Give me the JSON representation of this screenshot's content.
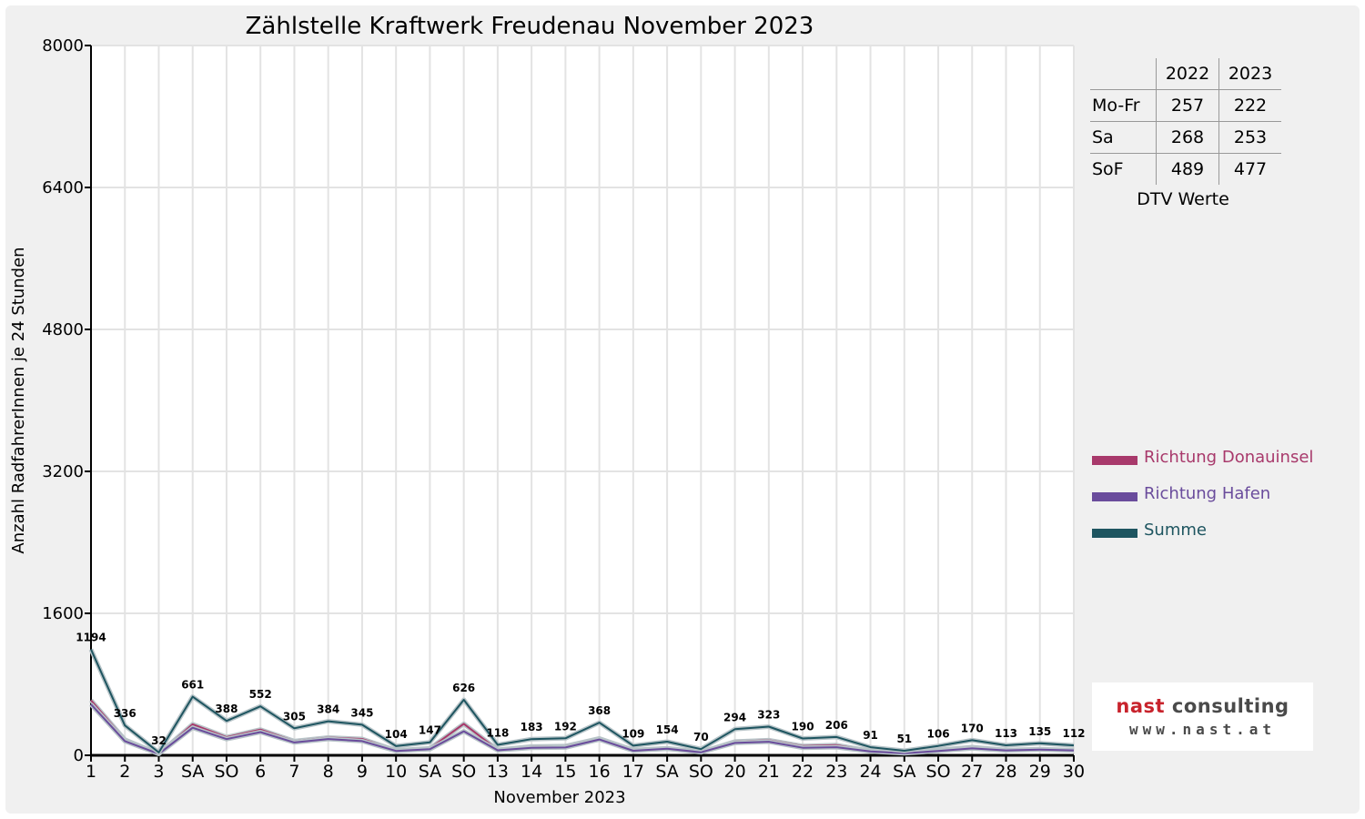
{
  "chart_data": {
    "type": "line",
    "title": "Zählstelle Kraftwerk Freudenau November 2023",
    "ylabel": "Anzahl RadfahrerInnen je 24 Stunden",
    "xlabel": "November 2023",
    "ylim": [
      0,
      8000
    ],
    "yticks": [
      "0",
      "1600",
      "3200",
      "4800",
      "6400",
      "8000"
    ],
    "grid": true,
    "legend_position": "right",
    "categories": [
      "1",
      "2",
      "3",
      "SA",
      "SO",
      "6",
      "7",
      "8",
      "9",
      "10",
      "SA",
      "SO",
      "13",
      "14",
      "15",
      "16",
      "17",
      "SA",
      "SO",
      "20",
      "21",
      "22",
      "23",
      "24",
      "SA",
      "SO",
      "27",
      "28",
      "29",
      "30"
    ],
    "highlight_categories": [
      0,
      4,
      11,
      18,
      25
    ],
    "highlight_color": "#e00000",
    "series": [
      {
        "name": "Richtung Donauinsel",
        "color": "#a8396b",
        "values": [
          620,
          176,
          16,
          350,
          205,
          290,
          160,
          200,
          185,
          55,
          78,
          355,
          62,
          98,
          104,
          190,
          58,
          80,
          36,
          155,
          170,
          105,
          115,
          48,
          27,
          58,
          92,
          58,
          70,
          57
        ]
      },
      {
        "name": "Richtung Hafen",
        "color": "#6a4c9c",
        "values": [
          574,
          160,
          16,
          311,
          183,
          262,
          145,
          184,
          160,
          49,
          69,
          271,
          56,
          85,
          88,
          178,
          51,
          74,
          34,
          139,
          153,
          85,
          91,
          43,
          24,
          48,
          78,
          55,
          65,
          55
        ]
      },
      {
        "name": "Summe",
        "color": "#1e5560",
        "values": [
          1194,
          336,
          32,
          661,
          388,
          552,
          305,
          384,
          345,
          104,
          147,
          626,
          118,
          183,
          192,
          368,
          109,
          154,
          70,
          294,
          323,
          190,
          206,
          91,
          51,
          106,
          170,
          113,
          135,
          112
        ]
      }
    ],
    "data_labels": [
      "1194",
      "336",
      "32",
      "661",
      "388",
      "552",
      "305",
      "384",
      "345",
      "104",
      "147",
      "626",
      "118",
      "183",
      "192",
      "368",
      "109",
      "154",
      "70",
      "294",
      "323",
      "190",
      "206",
      "91",
      "51",
      "106",
      "170",
      "113",
      "135",
      "112"
    ]
  },
  "dtv_table": {
    "headers": [
      "",
      "2022",
      "2023"
    ],
    "rows": [
      {
        "label": "Mo-Fr",
        "v2022": "257",
        "v2023": "222"
      },
      {
        "label": "Sa",
        "v2022": "268",
        "v2023": "253"
      },
      {
        "label": "SoF",
        "v2022": "489",
        "v2023": "477"
      }
    ],
    "caption": "DTV Werte"
  },
  "legend": [
    {
      "label": "Richtung Donauinsel",
      "color": "#a8396b"
    },
    {
      "label": "Richtung Hafen",
      "color": "#6a4c9c"
    },
    {
      "label": "Summe",
      "color": "#1e5560"
    }
  ],
  "logo": {
    "name_part1": "nast",
    "name_part2": "consulting",
    "url": "www.nast.at"
  }
}
